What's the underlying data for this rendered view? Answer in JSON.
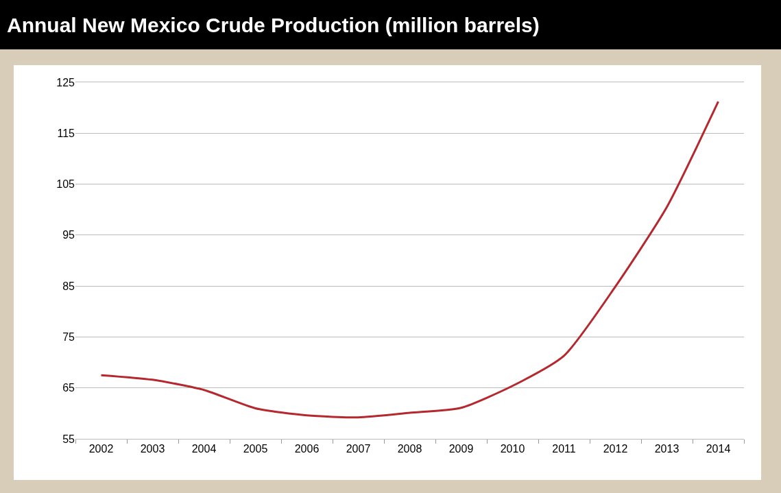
{
  "chart_data": {
    "type": "line",
    "title": "Annual New Mexico Crude Production (million barrels)",
    "categories": [
      "2002",
      "2003",
      "2004",
      "2005",
      "2006",
      "2007",
      "2008",
      "2009",
      "2010",
      "2011",
      "2012",
      "2013",
      "2014"
    ],
    "series": [
      {
        "color": "#b5282e",
        "values": [
          67.5,
          66.6,
          64.6,
          61,
          59.6,
          59.2,
          60.1,
          61.1,
          65.4,
          71.3,
          84.9,
          100.5,
          121.2
        ]
      }
    ],
    "ylim": [
      55,
      125
    ],
    "yticks": [
      55,
      65,
      75,
      85,
      95,
      105,
      115,
      125
    ],
    "grid": "y",
    "marker": "none",
    "line_style": "solid"
  }
}
